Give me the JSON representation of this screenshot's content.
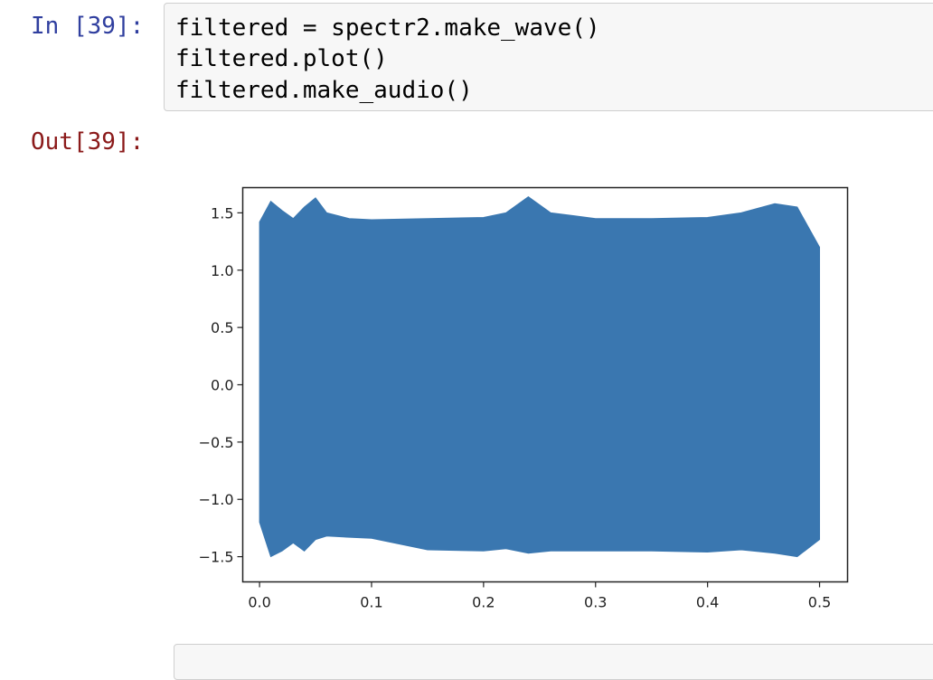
{
  "cell": {
    "in_prompt": "In [39]:",
    "out_prompt": "Out[39]:",
    "code_lines": [
      "filtered = spectr2.make_wave()",
      "filtered.plot()",
      "filtered.make_audio()"
    ]
  },
  "chart_data": {
    "type": "area",
    "title": "",
    "xlabel": "",
    "ylabel": "",
    "xlim": [
      -0.015,
      0.525
    ],
    "ylim": [
      -1.72,
      1.72
    ],
    "x_ticks": [
      0.0,
      0.1,
      0.2,
      0.3,
      0.4,
      0.5
    ],
    "x_tick_labels": [
      "0.0",
      "0.1",
      "0.2",
      "0.3",
      "0.4",
      "0.5"
    ],
    "y_ticks": [
      1.5,
      1.0,
      0.5,
      0.0,
      -0.5,
      -1.0,
      -1.5
    ],
    "y_tick_labels": [
      "1.5",
      "1.0",
      "0.5",
      "0.0",
      "−0.5",
      "−1.0",
      "−1.5"
    ],
    "grid": false,
    "colors": {
      "series": "#3a77b0",
      "axes": "#222222"
    },
    "series": [
      {
        "x": [
          0.0,
          0.01,
          0.02,
          0.03,
          0.04,
          0.05,
          0.06,
          0.08,
          0.1,
          0.15,
          0.2,
          0.22,
          0.24,
          0.26,
          0.3,
          0.35,
          0.4,
          0.43,
          0.46,
          0.48,
          0.5
        ],
        "upper": [
          1.42,
          1.6,
          1.52,
          1.45,
          1.55,
          1.63,
          1.5,
          1.45,
          1.44,
          1.45,
          1.46,
          1.5,
          1.64,
          1.5,
          1.45,
          1.45,
          1.46,
          1.5,
          1.58,
          1.55,
          1.2
        ],
        "lower": [
          -1.2,
          -1.5,
          -1.45,
          -1.38,
          -1.45,
          -1.35,
          -1.32,
          -1.33,
          -1.34,
          -1.44,
          -1.45,
          -1.43,
          -1.47,
          -1.45,
          -1.45,
          -1.45,
          -1.46,
          -1.44,
          -1.47,
          -1.5,
          -1.35
        ]
      }
    ]
  }
}
